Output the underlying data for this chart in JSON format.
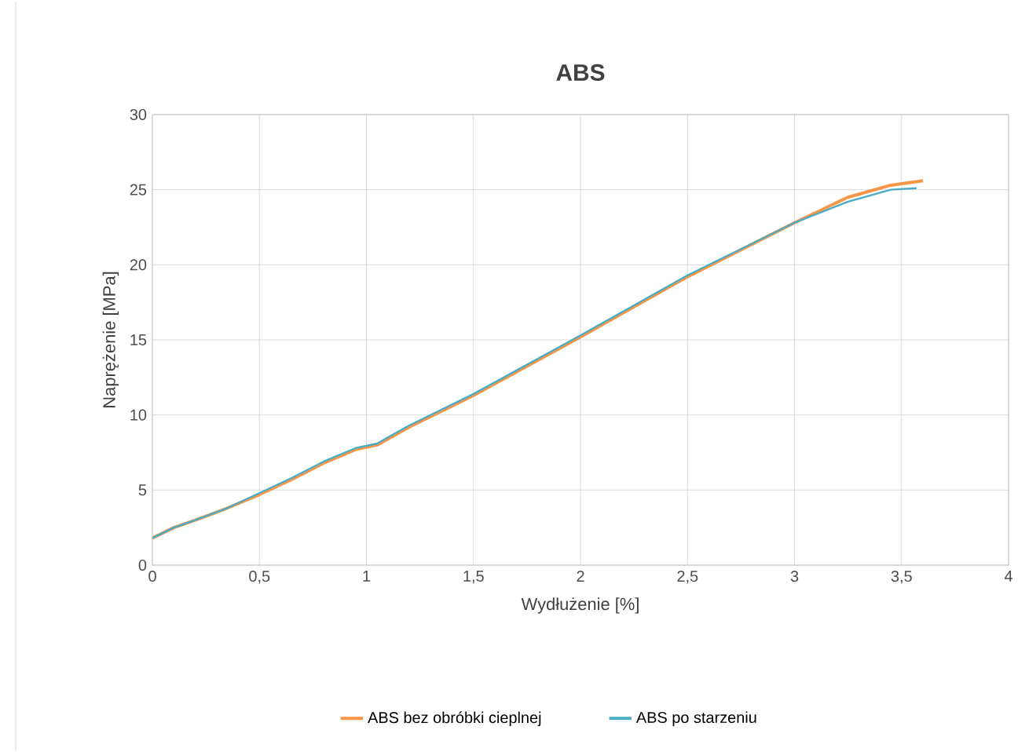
{
  "chart_data": {
    "type": "line",
    "title": "ABS",
    "xlabel": "Wydłużenie [%]",
    "ylabel": "Naprężenie [MPa]",
    "xlim": [
      0,
      4
    ],
    "ylim": [
      0,
      30
    ],
    "xticks": [
      0,
      {
        "value": 0.5,
        "label": "0,5"
      },
      1,
      {
        "value": 1.5,
        "label": "1,5"
      },
      2,
      {
        "value": 2.5,
        "label": "2,5"
      },
      3,
      {
        "value": 3.5,
        "label": "3,5"
      },
      4
    ],
    "yticks": [
      0,
      5,
      10,
      15,
      20,
      25,
      30
    ],
    "grid": true,
    "legend": "bottom",
    "marker": "none",
    "line_style": "solid",
    "series": [
      {
        "name": "ABS bez obróbki cieplnej",
        "color": "#f79646",
        "x": [
          0,
          0.1,
          0.2,
          0.35,
          0.5,
          0.65,
          0.8,
          0.95,
          1.05,
          1.2,
          1.5,
          2.0,
          2.5,
          3.0,
          3.25,
          3.45,
          3.6
        ],
        "values": [
          1.8,
          2.5,
          3.0,
          3.8,
          4.7,
          5.7,
          6.8,
          7.7,
          8.0,
          9.2,
          11.3,
          15.2,
          19.2,
          22.8,
          24.5,
          25.3,
          25.6
        ]
      },
      {
        "name": "ABS po starzeniu",
        "color": "#4bacc6",
        "x": [
          0,
          0.1,
          0.2,
          0.35,
          0.5,
          0.65,
          0.8,
          0.95,
          1.05,
          1.2,
          1.5,
          2.0,
          2.5,
          3.0,
          3.25,
          3.45,
          3.57
        ],
        "values": [
          1.8,
          2.5,
          3.0,
          3.8,
          4.8,
          5.8,
          6.9,
          7.8,
          8.1,
          9.3,
          11.4,
          15.3,
          19.3,
          22.8,
          24.2,
          25.0,
          25.1
        ]
      }
    ]
  }
}
